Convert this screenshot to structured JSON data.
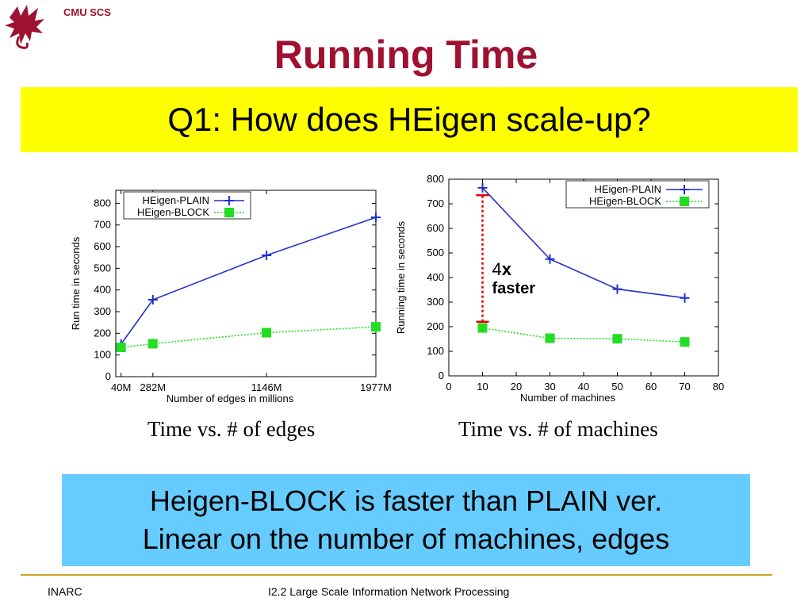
{
  "header": {
    "org": "CMU SCS",
    "title": "Running Time",
    "question": "Q1: How does HEigen scale-up?"
  },
  "chart_data": [
    {
      "type": "line",
      "xlabel": "Number of edges in millions",
      "ylabel": "Run time in seconds",
      "x": [
        40,
        282,
        1146,
        1977
      ],
      "x_tick_labels": [
        "40M",
        "282M",
        "1146M",
        "1977M"
      ],
      "ylim": [
        0,
        860
      ],
      "y_ticks": [
        0,
        100,
        200,
        300,
        400,
        500,
        600,
        700,
        800
      ],
      "legend_position": "top-left",
      "series": [
        {
          "name": "HEigen-PLAIN",
          "values": [
            150,
            355,
            560,
            735
          ],
          "color": "#1f2fd0",
          "marker": "plus"
        },
        {
          "name": "HEigen-BLOCK",
          "values": [
            135,
            152,
            203,
            230
          ],
          "color": "#22dd22",
          "marker": "square"
        }
      ],
      "caption": "Time vs. # of edges"
    },
    {
      "type": "line",
      "xlabel": "Number of machines",
      "ylabel": "Running time in seconds",
      "x": [
        10,
        30,
        50,
        70
      ],
      "xlim": [
        0,
        80
      ],
      "x_ticks": [
        0,
        10,
        20,
        30,
        40,
        50,
        60,
        70,
        80
      ],
      "ylim": [
        0,
        800
      ],
      "y_ticks": [
        0,
        100,
        200,
        300,
        400,
        500,
        600,
        700,
        800
      ],
      "legend_position": "top-right",
      "series": [
        {
          "name": "HEigen-PLAIN",
          "values": [
            765,
            475,
            353,
            317
          ],
          "color": "#1f2fd0",
          "marker": "plus"
        },
        {
          "name": "HEigen-BLOCK",
          "values": [
            195,
            153,
            151,
            138
          ],
          "color": "#22dd22",
          "marker": "square"
        }
      ],
      "annotation": {
        "line1_num": "4",
        "line1_x": "x",
        "line2": "faster",
        "from": 220,
        "to": 735,
        "at_x": 10
      },
      "caption": "Time vs. # of machines"
    }
  ],
  "summary": {
    "line1": "Heigen-BLOCK is faster than PLAIN ver.",
    "line2": "Linear on the number of machines, edges"
  },
  "footer": {
    "left": "INARC",
    "center": "I2.2 Large Scale Information Network Processing"
  }
}
